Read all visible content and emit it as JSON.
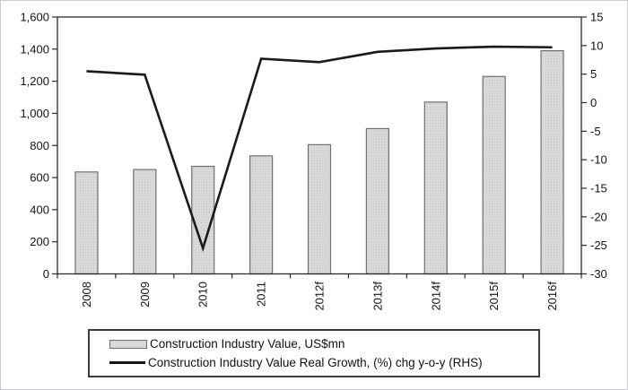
{
  "chart_data": {
    "type": "combo-bar-line",
    "title": "",
    "xlabel": "",
    "ylabel_left": "",
    "ylabel_right": "",
    "grid": false,
    "legend_position": "bottom",
    "categories": [
      "2008",
      "2009",
      "2010",
      "2011",
      "2012f",
      "2013f",
      "2014f",
      "2015f",
      "2016f"
    ],
    "series": [
      {
        "name": "Construction Industry Value, US$mn",
        "type": "bar",
        "axis": "left",
        "values": [
          635,
          650,
          670,
          735,
          805,
          905,
          1070,
          1230,
          1390
        ]
      },
      {
        "name": "Construction Industry Value Real Growth, (%) chg y-o-y (RHS)",
        "type": "line",
        "axis": "right",
        "values": [
          5.5,
          4.9,
          -25.5,
          7.7,
          7.1,
          8.9,
          9.5,
          9.8,
          9.7
        ]
      }
    ],
    "left_axis": {
      "min": 0,
      "max": 1600,
      "step": 200,
      "tick_values": [
        0,
        200,
        400,
        600,
        800,
        1000,
        1200,
        1400,
        1600
      ],
      "tick_labels": [
        "0",
        "200",
        "400",
        "600",
        "800",
        "1,000",
        "1,200",
        "1,400",
        "1,600"
      ]
    },
    "right_axis": {
      "min": -30,
      "max": 15,
      "step": 5,
      "tick_values": [
        15,
        10,
        5,
        0,
        -5,
        -10,
        -15,
        -20,
        -25,
        -30
      ],
      "tick_labels": [
        "15",
        "10",
        "5",
        "0",
        "-5",
        "-10",
        "-15",
        "-20",
        "-25",
        "-30"
      ]
    },
    "colors": {
      "bar_fill": "#d9d9d9",
      "bar_dot": "#c0c0c0",
      "bar_border": "#6f6f6f",
      "line": "#1a1a1a",
      "axis": "#2b2b2b",
      "text": "#141414"
    }
  },
  "legend": {
    "items": [
      {
        "label": "Construction Industry Value, US$mn",
        "swatch": "bar"
      },
      {
        "label": "Construction Industry Value Real Growth, (%) chg y-o-y (RHS)",
        "swatch": "line"
      }
    ]
  }
}
